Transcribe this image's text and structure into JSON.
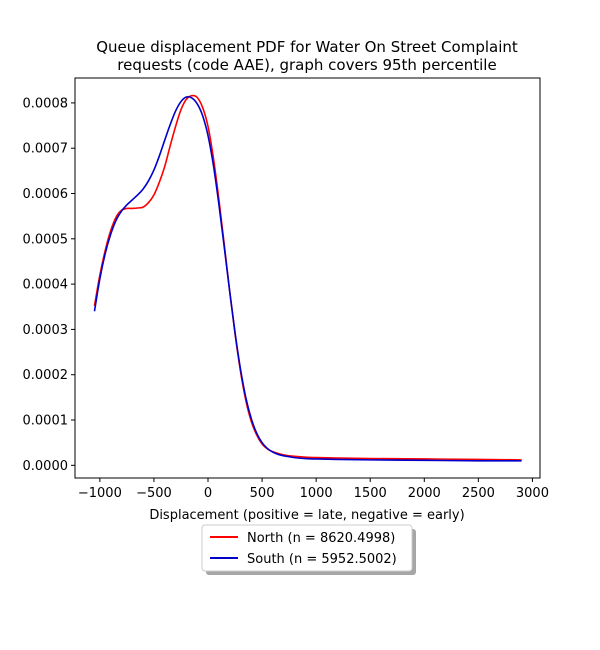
{
  "chart_data": {
    "type": "line",
    "title": [
      "Queue displacement PDF for Water On Street Complaint",
      "requests (code AAE), graph covers 95th percentile"
    ],
    "xlabel": "Displacement (positive = late, negative = early)",
    "ylabel": "",
    "xlim": [
      -1230,
      3070
    ],
    "ylim": [
      -2.8e-05,
      0.000855
    ],
    "x_ticks": [
      -1000,
      -500,
      0,
      500,
      1000,
      1500,
      2000,
      2500,
      3000
    ],
    "x_tick_labels": [
      "−1000",
      "−500",
      "0",
      "500",
      "1000",
      "1500",
      "2000",
      "2500",
      "3000"
    ],
    "y_ticks": [
      0,
      0.0001,
      0.0002,
      0.0003,
      0.0004,
      0.0005,
      0.0006,
      0.0007,
      0.0008
    ],
    "y_tick_labels": [
      "0.0000",
      "0.0001",
      "0.0002",
      "0.0003",
      "0.0004",
      "0.0005",
      "0.0006",
      "0.0007",
      "0.0008"
    ],
    "grid": false,
    "legend_position": "below-center",
    "series": [
      {
        "name": "North (n = 8620.4998)",
        "color": "#ff0000",
        "x": [
          -1050,
          -1000,
          -950,
          -900,
          -850,
          -800,
          -750,
          -700,
          -650,
          -600,
          -550,
          -500,
          -450,
          -400,
          -350,
          -300,
          -250,
          -200,
          -150,
          -100,
          -50,
          0,
          50,
          100,
          150,
          200,
          250,
          300,
          350,
          400,
          450,
          500,
          550,
          600,
          650,
          700,
          750,
          800,
          900,
          1000,
          1200,
          1500,
          2000,
          2500,
          2900
        ],
        "y": [
          0.000352,
          0.00042,
          0.000475,
          0.000518,
          0.000548,
          0.000563,
          0.000567,
          0.000567,
          0.000568,
          0.00057,
          0.00058,
          0.000597,
          0.000625,
          0.00066,
          0.000705,
          0.000748,
          0.000785,
          0.000808,
          0.000816,
          0.000812,
          0.00079,
          0.000748,
          0.000678,
          0.000588,
          0.000488,
          0.000385,
          0.00029,
          0.000208,
          0.000143,
          9.7e-05,
          6.7e-05,
          4.7e-05,
          3.6e-05,
          3e-05,
          2.6e-05,
          2.3e-05,
          2.1e-05,
          2e-05,
          1.8e-05,
          1.7e-05,
          1.6e-05,
          1.5e-05,
          1.4e-05,
          1.3e-05,
          1.2e-05
        ]
      },
      {
        "name": "South (n = 5952.5002)",
        "color": "#0000cc",
        "x": [
          -1050,
          -1000,
          -950,
          -900,
          -850,
          -800,
          -750,
          -700,
          -650,
          -600,
          -550,
          -500,
          -450,
          -400,
          -350,
          -300,
          -250,
          -200,
          -150,
          -100,
          -50,
          0,
          50,
          100,
          150,
          200,
          250,
          300,
          350,
          400,
          450,
          500,
          550,
          600,
          650,
          700,
          750,
          800,
          900,
          1000,
          1200,
          1500,
          2000,
          2500,
          2900
        ],
        "y": [
          0.00034,
          0.000412,
          0.000468,
          0.00051,
          0.000541,
          0.000561,
          0.000575,
          0.000586,
          0.000597,
          0.00061,
          0.000628,
          0.000652,
          0.000683,
          0.000718,
          0.000752,
          0.000782,
          0.000803,
          0.000813,
          0.000811,
          0.000798,
          0.000772,
          0.000728,
          0.000662,
          0.000577,
          0.000482,
          0.000385,
          0.000293,
          0.000213,
          0.000149,
          0.000103,
          7.1e-05,
          5e-05,
          3.7e-05,
          2.9e-05,
          2.4e-05,
          2.1e-05,
          1.9e-05,
          1.7e-05,
          1.5e-05,
          1.4e-05,
          1.3e-05,
          1.2e-05,
          1.1e-05,
          1e-05,
          1e-05
        ]
      }
    ]
  }
}
